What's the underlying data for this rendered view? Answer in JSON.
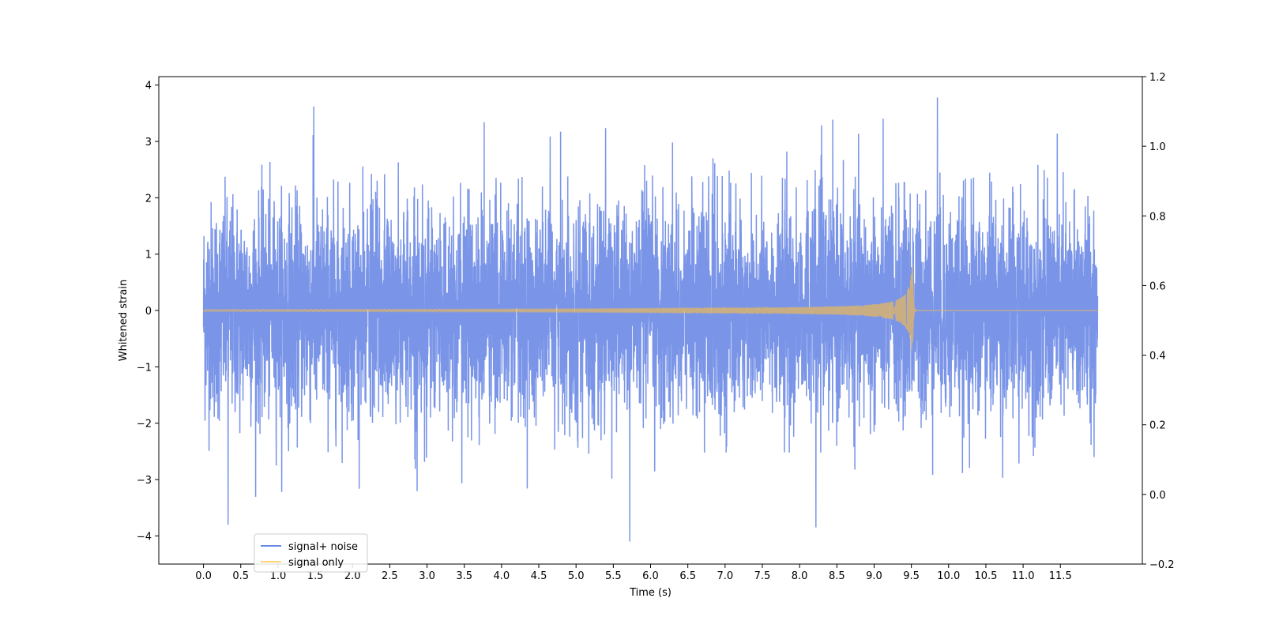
{
  "chart_data": {
    "type": "line",
    "title": "",
    "xlabel": "Time (s)",
    "ylabel": "Whitened strain",
    "y2label": "",
    "xlim": [
      -0.6,
      12.6
    ],
    "ylim": [
      -4.5,
      4.15
    ],
    "y2lim": [
      -0.2,
      1.2
    ],
    "x_ticks": [
      0.0,
      0.5,
      1.0,
      1.5,
      2.0,
      2.5,
      3.0,
      3.5,
      4.0,
      4.5,
      5.0,
      5.5,
      6.0,
      6.5,
      7.0,
      7.5,
      8.0,
      8.5,
      9.0,
      9.5,
      10.0,
      10.5,
      11.0,
      11.5
    ],
    "x_tick_labels": [
      "0.0",
      "0.5",
      "1.0",
      "1.5",
      "2.0",
      "2.5",
      "3.0",
      "3.5",
      "4.0",
      "4.5",
      "5.0",
      "5.5",
      "6.0",
      "6.5",
      "7.0",
      "7.5",
      "8.0",
      "8.5",
      "9.0",
      "9.5",
      "10.0",
      "10.5",
      "11.0",
      "11.5"
    ],
    "y_ticks": [
      4,
      3,
      2,
      1,
      0,
      -1,
      -2,
      -3,
      -4
    ],
    "y_tick_labels": [
      "4",
      "3",
      "2",
      "1",
      "0",
      "−1",
      "−2",
      "−3",
      "−4"
    ],
    "y2_ticks": [
      1.2,
      1.0,
      0.8,
      0.6,
      0.4,
      0.2,
      0.0,
      -0.2
    ],
    "y2_tick_labels": [
      "1.2",
      "1.0",
      "0.8",
      "0.6",
      "0.4",
      "0.2",
      "0.0",
      "−0.2"
    ],
    "grid": false,
    "legend_position": "lower-left",
    "series": [
      {
        "name": "signal+ noise",
        "color": "#6b8ae6",
        "kind": "noise",
        "x_range": [
          0.0,
          12.0
        ],
        "noise_std": 1.0,
        "notable_peaks": [
          {
            "x": 0.33,
            "y": -3.8
          },
          {
            "x": 1.48,
            "y": 3.62
          },
          {
            "x": 5.72,
            "y": -4.1
          },
          {
            "x": 8.22,
            "y": -3.85
          },
          {
            "x": 9.85,
            "y": 3.78
          }
        ]
      },
      {
        "name": "signal only",
        "color": "#ffbf40",
        "kind": "chirp",
        "x_range": [
          0.0,
          12.0
        ],
        "merger_time": 9.52,
        "peak_amplitude": 0.8,
        "ringdown_end": 9.58
      }
    ]
  }
}
